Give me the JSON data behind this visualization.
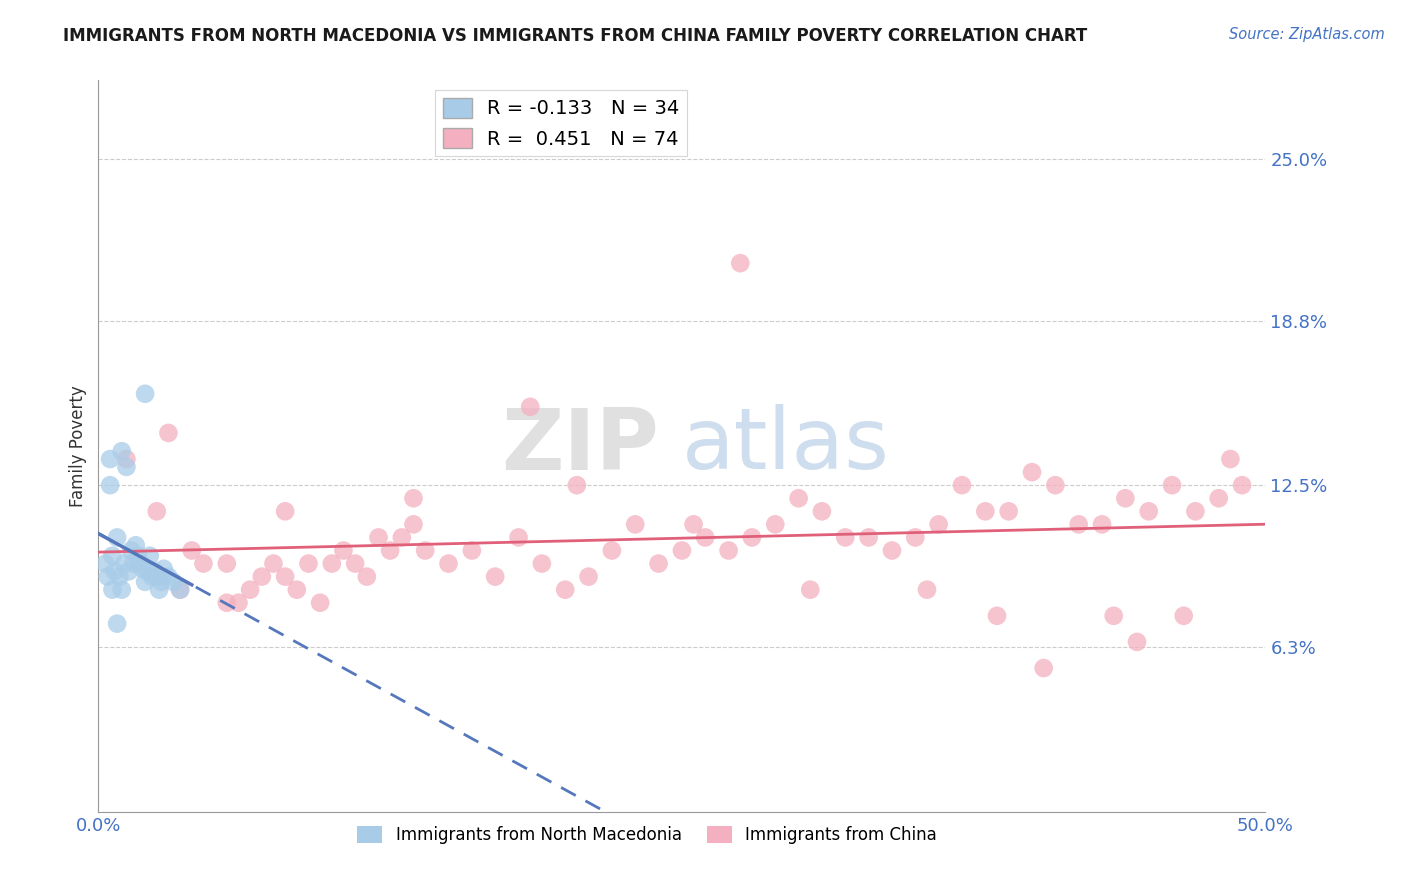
{
  "title": "IMMIGRANTS FROM NORTH MACEDONIA VS IMMIGRANTS FROM CHINA FAMILY POVERTY CORRELATION CHART",
  "source_text": "Source: ZipAtlas.com",
  "ylabel": "Family Poverty",
  "xlim": [
    0.0,
    50.0
  ],
  "ylim": [
    0.0,
    28.0
  ],
  "yticks": [
    6.3,
    12.5,
    18.8,
    25.0
  ],
  "xticks": [
    0.0,
    50.0
  ],
  "xtick_labels": [
    "0.0%",
    "50.0%"
  ],
  "ytick_labels": [
    "6.3%",
    "12.5%",
    "18.8%",
    "25.0%"
  ],
  "color_blue": "#a8cce8",
  "color_pink": "#f4b0c0",
  "line_blue": "#5577bb",
  "line_pink": "#e0607a",
  "legend_R_blue": "-0.133",
  "legend_N_blue": "34",
  "legend_R_pink": "0.451",
  "legend_N_pink": "74",
  "watermark_ZIP": "ZIP",
  "watermark_atlas": "atlas",
  "title_color": "#1a1a1a",
  "axis_label_color": "#333333",
  "tick_label_color": "#4472C4",
  "grid_color": "#cccccc",
  "north_macedonia_x": [
    0.3,
    0.4,
    0.5,
    0.5,
    0.6,
    0.6,
    0.7,
    0.8,
    0.8,
    0.9,
    1.0,
    1.0,
    1.1,
    1.2,
    1.3,
    1.4,
    1.5,
    1.6,
    1.7,
    1.8,
    1.9,
    2.0,
    2.1,
    2.2,
    2.3,
    2.4,
    2.5,
    2.6,
    2.7,
    2.8,
    3.0,
    3.2,
    3.5,
    2.0
  ],
  "north_macedonia_y": [
    9.5,
    9.0,
    13.5,
    12.5,
    9.8,
    8.5,
    9.2,
    10.5,
    7.2,
    9.0,
    13.8,
    8.5,
    9.5,
    13.2,
    9.2,
    10.0,
    9.5,
    10.2,
    9.8,
    9.5,
    9.3,
    8.8,
    9.2,
    9.8,
    9.0,
    9.2,
    9.0,
    8.5,
    8.8,
    9.3,
    9.0,
    8.8,
    8.5,
    16.0
  ],
  "china_x": [
    1.2,
    2.5,
    3.0,
    4.0,
    4.5,
    5.5,
    5.5,
    6.5,
    7.0,
    7.5,
    8.0,
    8.5,
    9.0,
    9.5,
    10.0,
    10.5,
    11.0,
    11.5,
    12.0,
    12.5,
    13.0,
    13.5,
    14.0,
    15.0,
    16.0,
    17.0,
    18.0,
    18.5,
    19.0,
    20.0,
    21.0,
    22.0,
    23.0,
    24.0,
    25.0,
    26.0,
    27.0,
    28.0,
    29.0,
    30.0,
    31.0,
    32.0,
    33.0,
    34.0,
    35.0,
    36.0,
    37.0,
    38.0,
    39.0,
    40.0,
    41.0,
    42.0,
    43.0,
    44.0,
    45.0,
    46.0,
    47.0,
    48.0,
    49.0,
    3.5,
    6.0,
    8.0,
    13.5,
    20.5,
    25.5,
    30.5,
    38.5,
    44.5,
    46.5,
    48.5,
    35.5,
    40.5,
    43.5,
    27.5
  ],
  "china_y": [
    13.5,
    11.5,
    14.5,
    10.0,
    9.5,
    8.0,
    9.5,
    8.5,
    9.0,
    9.5,
    9.0,
    8.5,
    9.5,
    8.0,
    9.5,
    10.0,
    9.5,
    9.0,
    10.5,
    10.0,
    10.5,
    11.0,
    10.0,
    9.5,
    10.0,
    9.0,
    10.5,
    15.5,
    9.5,
    8.5,
    9.0,
    10.0,
    11.0,
    9.5,
    10.0,
    10.5,
    10.0,
    10.5,
    11.0,
    12.0,
    11.5,
    10.5,
    10.5,
    10.0,
    10.5,
    11.0,
    12.5,
    11.5,
    11.5,
    13.0,
    12.5,
    11.0,
    11.0,
    12.0,
    11.5,
    12.5,
    11.5,
    12.0,
    12.5,
    8.5,
    8.0,
    11.5,
    12.0,
    12.5,
    11.0,
    8.5,
    7.5,
    6.5,
    7.5,
    13.5,
    8.5,
    5.5,
    7.5,
    21.0
  ]
}
